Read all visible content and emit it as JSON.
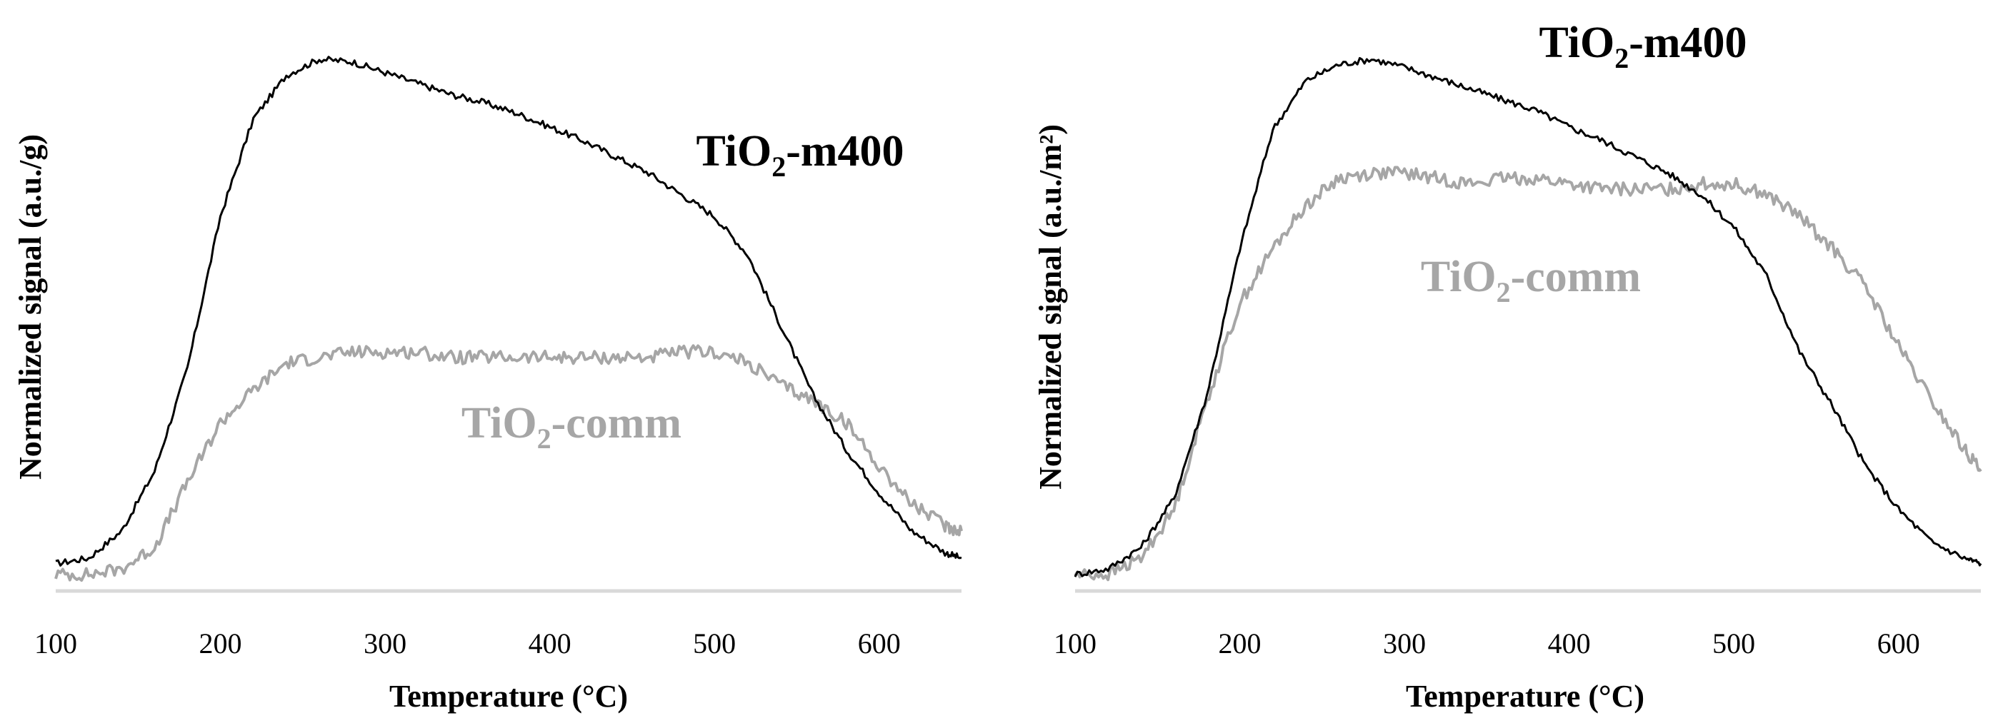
{
  "chart_data": [
    {
      "type": "line",
      "title": "",
      "xlabel": "Temperature (°C)",
      "ylabel": "Normalized signal (a.u./g)",
      "xlim": [
        100,
        650
      ],
      "ylim": [
        0,
        1
      ],
      "xticks": [
        "100",
        "200",
        "300",
        "400",
        "500",
        "600"
      ],
      "grid": false,
      "legend": "inline labels",
      "series": [
        {
          "name": "TiO2-m400",
          "label_main": "TiO",
          "label_sub": "2",
          "label_rest": "-m400",
          "color": "#000000",
          "x": [
            100,
            120,
            140,
            160,
            180,
            200,
            220,
            240,
            260,
            280,
            300,
            320,
            340,
            360,
            380,
            400,
            420,
            440,
            460,
            480,
            500,
            520,
            540,
            560,
            580,
            600,
            620,
            640,
            650
          ],
          "y": [
            0.04,
            0.05,
            0.1,
            0.21,
            0.4,
            0.68,
            0.86,
            0.94,
            0.97,
            0.965,
            0.945,
            0.925,
            0.905,
            0.89,
            0.87,
            0.845,
            0.82,
            0.79,
            0.76,
            0.72,
            0.68,
            0.61,
            0.48,
            0.35,
            0.25,
            0.17,
            0.1,
            0.06,
            0.05
          ]
        },
        {
          "name": "TiO2-comm",
          "label_main": "TiO",
          "label_sub": "2",
          "label_rest": "-comm",
          "color": "#a6a6a6",
          "x": [
            100,
            120,
            140,
            160,
            180,
            200,
            220,
            240,
            260,
            280,
            300,
            320,
            340,
            360,
            380,
            400,
            420,
            440,
            460,
            480,
            500,
            520,
            540,
            560,
            580,
            600,
            620,
            640,
            650
          ],
          "y": [
            0.02,
            0.02,
            0.03,
            0.07,
            0.19,
            0.3,
            0.36,
            0.41,
            0.42,
            0.43,
            0.43,
            0.43,
            0.42,
            0.42,
            0.42,
            0.42,
            0.42,
            0.42,
            0.42,
            0.43,
            0.43,
            0.41,
            0.37,
            0.34,
            0.3,
            0.22,
            0.15,
            0.11,
            0.1
          ]
        }
      ]
    },
    {
      "type": "line",
      "title": "",
      "xlabel": "Temperature (°C)",
      "ylabel": "Normalized signal (a.u./m²)",
      "xlim": [
        100,
        650
      ],
      "ylim": [
        0,
        1
      ],
      "xticks": [
        "100",
        "200",
        "300",
        "400",
        "500",
        "600"
      ],
      "grid": false,
      "legend": "inline labels",
      "series": [
        {
          "name": "TiO2-m400",
          "label_main": "TiO",
          "label_sub": "2",
          "label_rest": "-m400",
          "color": "#000000",
          "x": [
            100,
            120,
            140,
            160,
            180,
            200,
            220,
            240,
            260,
            280,
            300,
            320,
            340,
            360,
            380,
            400,
            420,
            440,
            460,
            480,
            500,
            520,
            540,
            560,
            580,
            600,
            620,
            640,
            650
          ],
          "y": [
            0.02,
            0.03,
            0.07,
            0.16,
            0.35,
            0.62,
            0.84,
            0.93,
            0.96,
            0.97,
            0.955,
            0.935,
            0.915,
            0.895,
            0.875,
            0.845,
            0.82,
            0.79,
            0.76,
            0.72,
            0.66,
            0.57,
            0.43,
            0.33,
            0.22,
            0.14,
            0.08,
            0.05,
            0.04
          ]
        },
        {
          "name": "TiO2-comm",
          "label_main": "TiO",
          "label_sub": "2",
          "label_rest": "-comm",
          "color": "#a6a6a6",
          "x": [
            100,
            120,
            140,
            160,
            180,
            200,
            220,
            240,
            260,
            280,
            300,
            320,
            340,
            360,
            380,
            400,
            420,
            440,
            460,
            480,
            500,
            520,
            540,
            560,
            580,
            600,
            620,
            640,
            650
          ],
          "y": [
            0.02,
            0.02,
            0.05,
            0.14,
            0.34,
            0.52,
            0.62,
            0.7,
            0.75,
            0.76,
            0.76,
            0.75,
            0.74,
            0.75,
            0.75,
            0.74,
            0.73,
            0.73,
            0.73,
            0.74,
            0.74,
            0.72,
            0.68,
            0.62,
            0.55,
            0.44,
            0.34,
            0.25,
            0.21
          ]
        }
      ]
    }
  ]
}
